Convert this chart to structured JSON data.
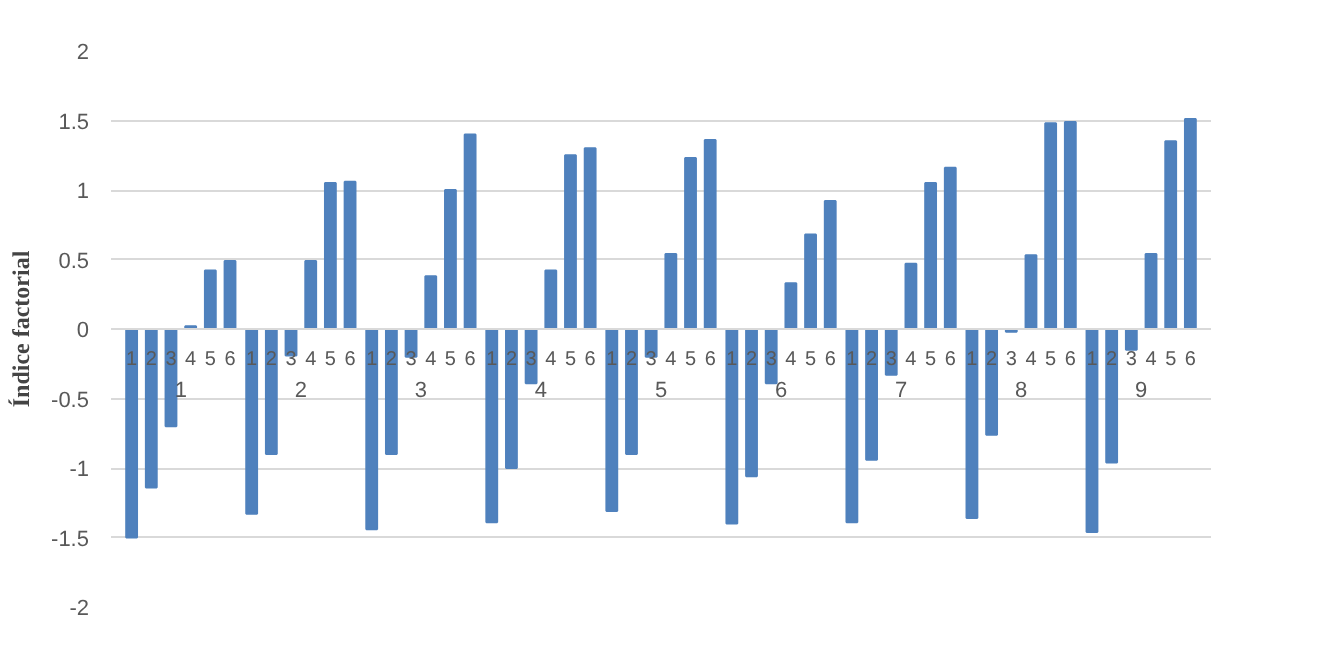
{
  "chart_data": {
    "type": "bar",
    "ylabel": "Índice factorial",
    "categories": [
      "1",
      "2",
      "3",
      "4",
      "5",
      "6",
      "1",
      "2",
      "3",
      "4",
      "5",
      "6",
      "1",
      "2",
      "3",
      "4",
      "5",
      "6",
      "1",
      "2",
      "3",
      "4",
      "5",
      "6",
      "1",
      "2",
      "3",
      "4",
      "5",
      "6",
      "1",
      "2",
      "3",
      "4",
      "5",
      "6",
      "1",
      "2",
      "3",
      "4",
      "5",
      "6",
      "1",
      "2",
      "3",
      "4",
      "5",
      "6",
      "1",
      "2",
      "3",
      "4",
      "5",
      "6"
    ],
    "annotations": [
      "1",
      "2",
      "3",
      "4",
      "5",
      "6",
      "7",
      "8",
      "9"
    ],
    "values": [
      -1.5,
      -1.14,
      -0.7,
      0.02,
      0.42,
      0.49,
      -1.33,
      -0.9,
      -0.19,
      0.49,
      1.05,
      1.06,
      -1.44,
      -0.9,
      -0.2,
      0.38,
      1.0,
      1.4,
      -1.39,
      -1.0,
      -0.39,
      0.42,
      1.25,
      1.3,
      -1.31,
      -0.9,
      -0.2,
      0.54,
      1.23,
      1.36,
      -1.4,
      -1.06,
      -0.39,
      0.33,
      0.68,
      0.92,
      -1.39,
      -0.94,
      -0.33,
      0.47,
      1.05,
      1.16,
      -1.36,
      -0.76,
      -0.02,
      0.53,
      1.48,
      1.49,
      -1.46,
      -0.96,
      -0.15,
      0.54,
      1.35,
      1.51
    ],
    "color": "#4f81bd",
    "ylim": [
      -2,
      2
    ],
    "yticks": [
      -2,
      -1.5,
      -1,
      -0.5,
      0,
      0.5,
      1,
      1.5,
      2
    ],
    "grid": "y"
  }
}
